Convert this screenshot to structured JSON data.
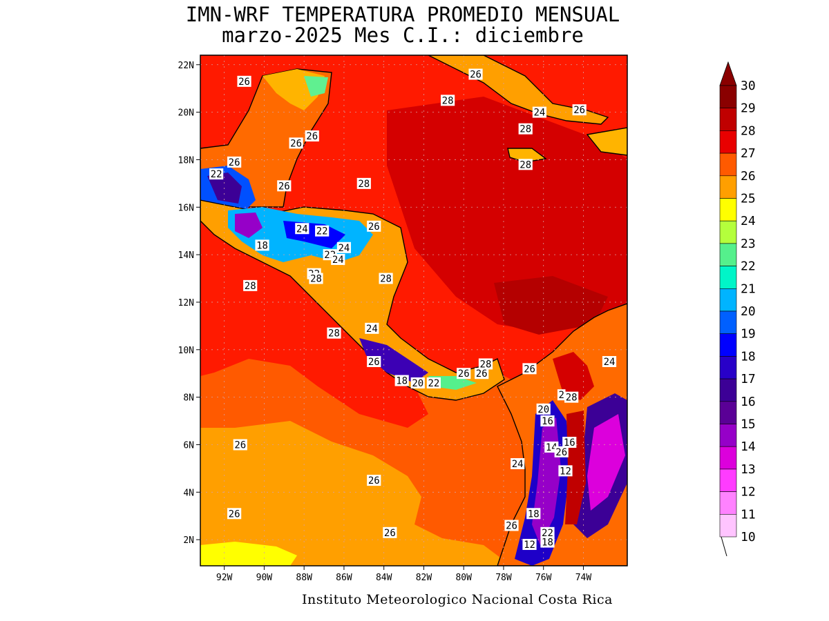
{
  "title": {
    "line1": "IMN-WRF  TEMPERATURA PROMEDIO MENSUAL",
    "line2": "marzo-2025 Mes C.I.: diciembre"
  },
  "credit": "Instituto Meteorologico Nacional Costa Rica",
  "map": {
    "lon_range": [
      -93.2,
      -71.8
    ],
    "lat_range": [
      0.9,
      22.4
    ],
    "x_ticks": [
      {
        "lon": -92,
        "label": "92W"
      },
      {
        "lon": -90,
        "label": "90W"
      },
      {
        "lon": -88,
        "label": "88W"
      },
      {
        "lon": -86,
        "label": "86W"
      },
      {
        "lon": -84,
        "label": "84W"
      },
      {
        "lon": -82,
        "label": "82W"
      },
      {
        "lon": -80,
        "label": "80W"
      },
      {
        "lon": -78,
        "label": "78W"
      },
      {
        "lon": -76,
        "label": "76W"
      },
      {
        "lon": -74,
        "label": "74W"
      }
    ],
    "y_ticks": [
      {
        "lat": 2,
        "label": "2N"
      },
      {
        "lat": 4,
        "label": "4N"
      },
      {
        "lat": 6,
        "label": "6N"
      },
      {
        "lat": 8,
        "label": "8N"
      },
      {
        "lat": 10,
        "label": "10N"
      },
      {
        "lat": 12,
        "label": "12N"
      },
      {
        "lat": 14,
        "label": "14N"
      },
      {
        "lat": 16,
        "label": "16N"
      },
      {
        "lat": 18,
        "label": "18N"
      },
      {
        "lat": 20,
        "label": "20N"
      },
      {
        "lat": 22,
        "label": "22N"
      }
    ],
    "contour_labels": [
      {
        "lon": -91.0,
        "lat": 21.3,
        "text": "26"
      },
      {
        "lon": -80.8,
        "lat": 20.5,
        "text": "28"
      },
      {
        "lon": -79.4,
        "lat": 21.6,
        "text": "26"
      },
      {
        "lon": -76.9,
        "lat": 19.3,
        "text": "28"
      },
      {
        "lon": -76.2,
        "lat": 20.0,
        "text": "24"
      },
      {
        "lon": -74.2,
        "lat": 20.1,
        "text": "26"
      },
      {
        "lon": -76.9,
        "lat": 17.8,
        "text": "28"
      },
      {
        "lon": -88.4,
        "lat": 18.7,
        "text": "26"
      },
      {
        "lon": -87.6,
        "lat": 19.0,
        "text": "26"
      },
      {
        "lon": -91.5,
        "lat": 17.9,
        "text": "26"
      },
      {
        "lon": -92.4,
        "lat": 17.4,
        "text": "22"
      },
      {
        "lon": -89.0,
        "lat": 16.9,
        "text": "26"
      },
      {
        "lon": -85.0,
        "lat": 17.0,
        "text": "28"
      },
      {
        "lon": -88.1,
        "lat": 15.1,
        "text": "24"
      },
      {
        "lon": -87.1,
        "lat": 15.0,
        "text": "22"
      },
      {
        "lon": -84.5,
        "lat": 15.2,
        "text": "26"
      },
      {
        "lon": -86.0,
        "lat": 14.3,
        "text": "24"
      },
      {
        "lon": -86.7,
        "lat": 14.0,
        "text": "22"
      },
      {
        "lon": -86.3,
        "lat": 13.8,
        "text": "24"
      },
      {
        "lon": -90.1,
        "lat": 14.4,
        "text": "18"
      },
      {
        "lon": -87.5,
        "lat": 13.2,
        "text": "22"
      },
      {
        "lon": -87.4,
        "lat": 13.0,
        "text": "28"
      },
      {
        "lon": -83.9,
        "lat": 13.0,
        "text": "28"
      },
      {
        "lon": -90.7,
        "lat": 12.7,
        "text": "28"
      },
      {
        "lon": -84.6,
        "lat": 10.9,
        "text": "24"
      },
      {
        "lon": -86.5,
        "lat": 10.7,
        "text": "28"
      },
      {
        "lon": -84.5,
        "lat": 9.5,
        "text": "26"
      },
      {
        "lon": -83.1,
        "lat": 8.7,
        "text": "18"
      },
      {
        "lon": -82.3,
        "lat": 8.6,
        "text": "20"
      },
      {
        "lon": -81.5,
        "lat": 8.6,
        "text": "22"
      },
      {
        "lon": -80.0,
        "lat": 9.0,
        "text": "26"
      },
      {
        "lon": -79.1,
        "lat": 9.0,
        "text": "26"
      },
      {
        "lon": -78.9,
        "lat": 9.4,
        "text": "28"
      },
      {
        "lon": -76.7,
        "lat": 9.2,
        "text": "26"
      },
      {
        "lon": -72.7,
        "lat": 9.5,
        "text": "24"
      },
      {
        "lon": -75.1,
        "lat": 8.1,
        "text": "2"
      },
      {
        "lon": -74.6,
        "lat": 8.0,
        "text": "28"
      },
      {
        "lon": -76.0,
        "lat": 7.5,
        "text": "20"
      },
      {
        "lon": -75.8,
        "lat": 7.0,
        "text": "16"
      },
      {
        "lon": -74.7,
        "lat": 6.1,
        "text": "16"
      },
      {
        "lon": -75.6,
        "lat": 5.9,
        "text": "14"
      },
      {
        "lon": -75.1,
        "lat": 5.7,
        "text": "26"
      },
      {
        "lon": -77.3,
        "lat": 5.2,
        "text": "24"
      },
      {
        "lon": -74.9,
        "lat": 4.9,
        "text": "12"
      },
      {
        "lon": -76.5,
        "lat": 3.1,
        "text": "18"
      },
      {
        "lon": -75.8,
        "lat": 2.3,
        "text": "22"
      },
      {
        "lon": -75.8,
        "lat": 1.9,
        "text": "18"
      },
      {
        "lon": -76.7,
        "lat": 1.8,
        "text": "12"
      },
      {
        "lon": -77.6,
        "lat": 2.6,
        "text": "26"
      },
      {
        "lon": -91.2,
        "lat": 6.0,
        "text": "26"
      },
      {
        "lon": -91.5,
        "lat": 3.1,
        "text": "26"
      },
      {
        "lon": -84.5,
        "lat": 4.5,
        "text": "26"
      },
      {
        "lon": -83.7,
        "lat": 2.3,
        "text": "26"
      }
    ]
  },
  "colorbar": {
    "labels": [
      "30",
      "29",
      "28",
      "27",
      "26",
      "25",
      "24",
      "23",
      "22",
      "21",
      "20",
      "19",
      "18",
      "17",
      "16",
      "15",
      "14",
      "13",
      "12",
      "11",
      "10"
    ],
    "colors": [
      "#8a0000",
      "#c00000",
      "#e80000",
      "#ff5a00",
      "#ff9f00",
      "#ffff00",
      "#b4ff3c",
      "#55f08c",
      "#00f5c8",
      "#00b4ff",
      "#0060ff",
      "#0000ff",
      "#2800c8",
      "#3c0096",
      "#5a0096",
      "#9600c8",
      "#dc00dc",
      "#ff3cff",
      "#ff82ff",
      "#ffc4ff"
    ]
  },
  "field_colors": {
    "ocean_warm": "#d40000",
    "ocean_28": "#ff1a00",
    "ocean_27": "#ff5a00",
    "ocean_26": "#ff9f00",
    "ocean_25": "#ffff00"
  }
}
